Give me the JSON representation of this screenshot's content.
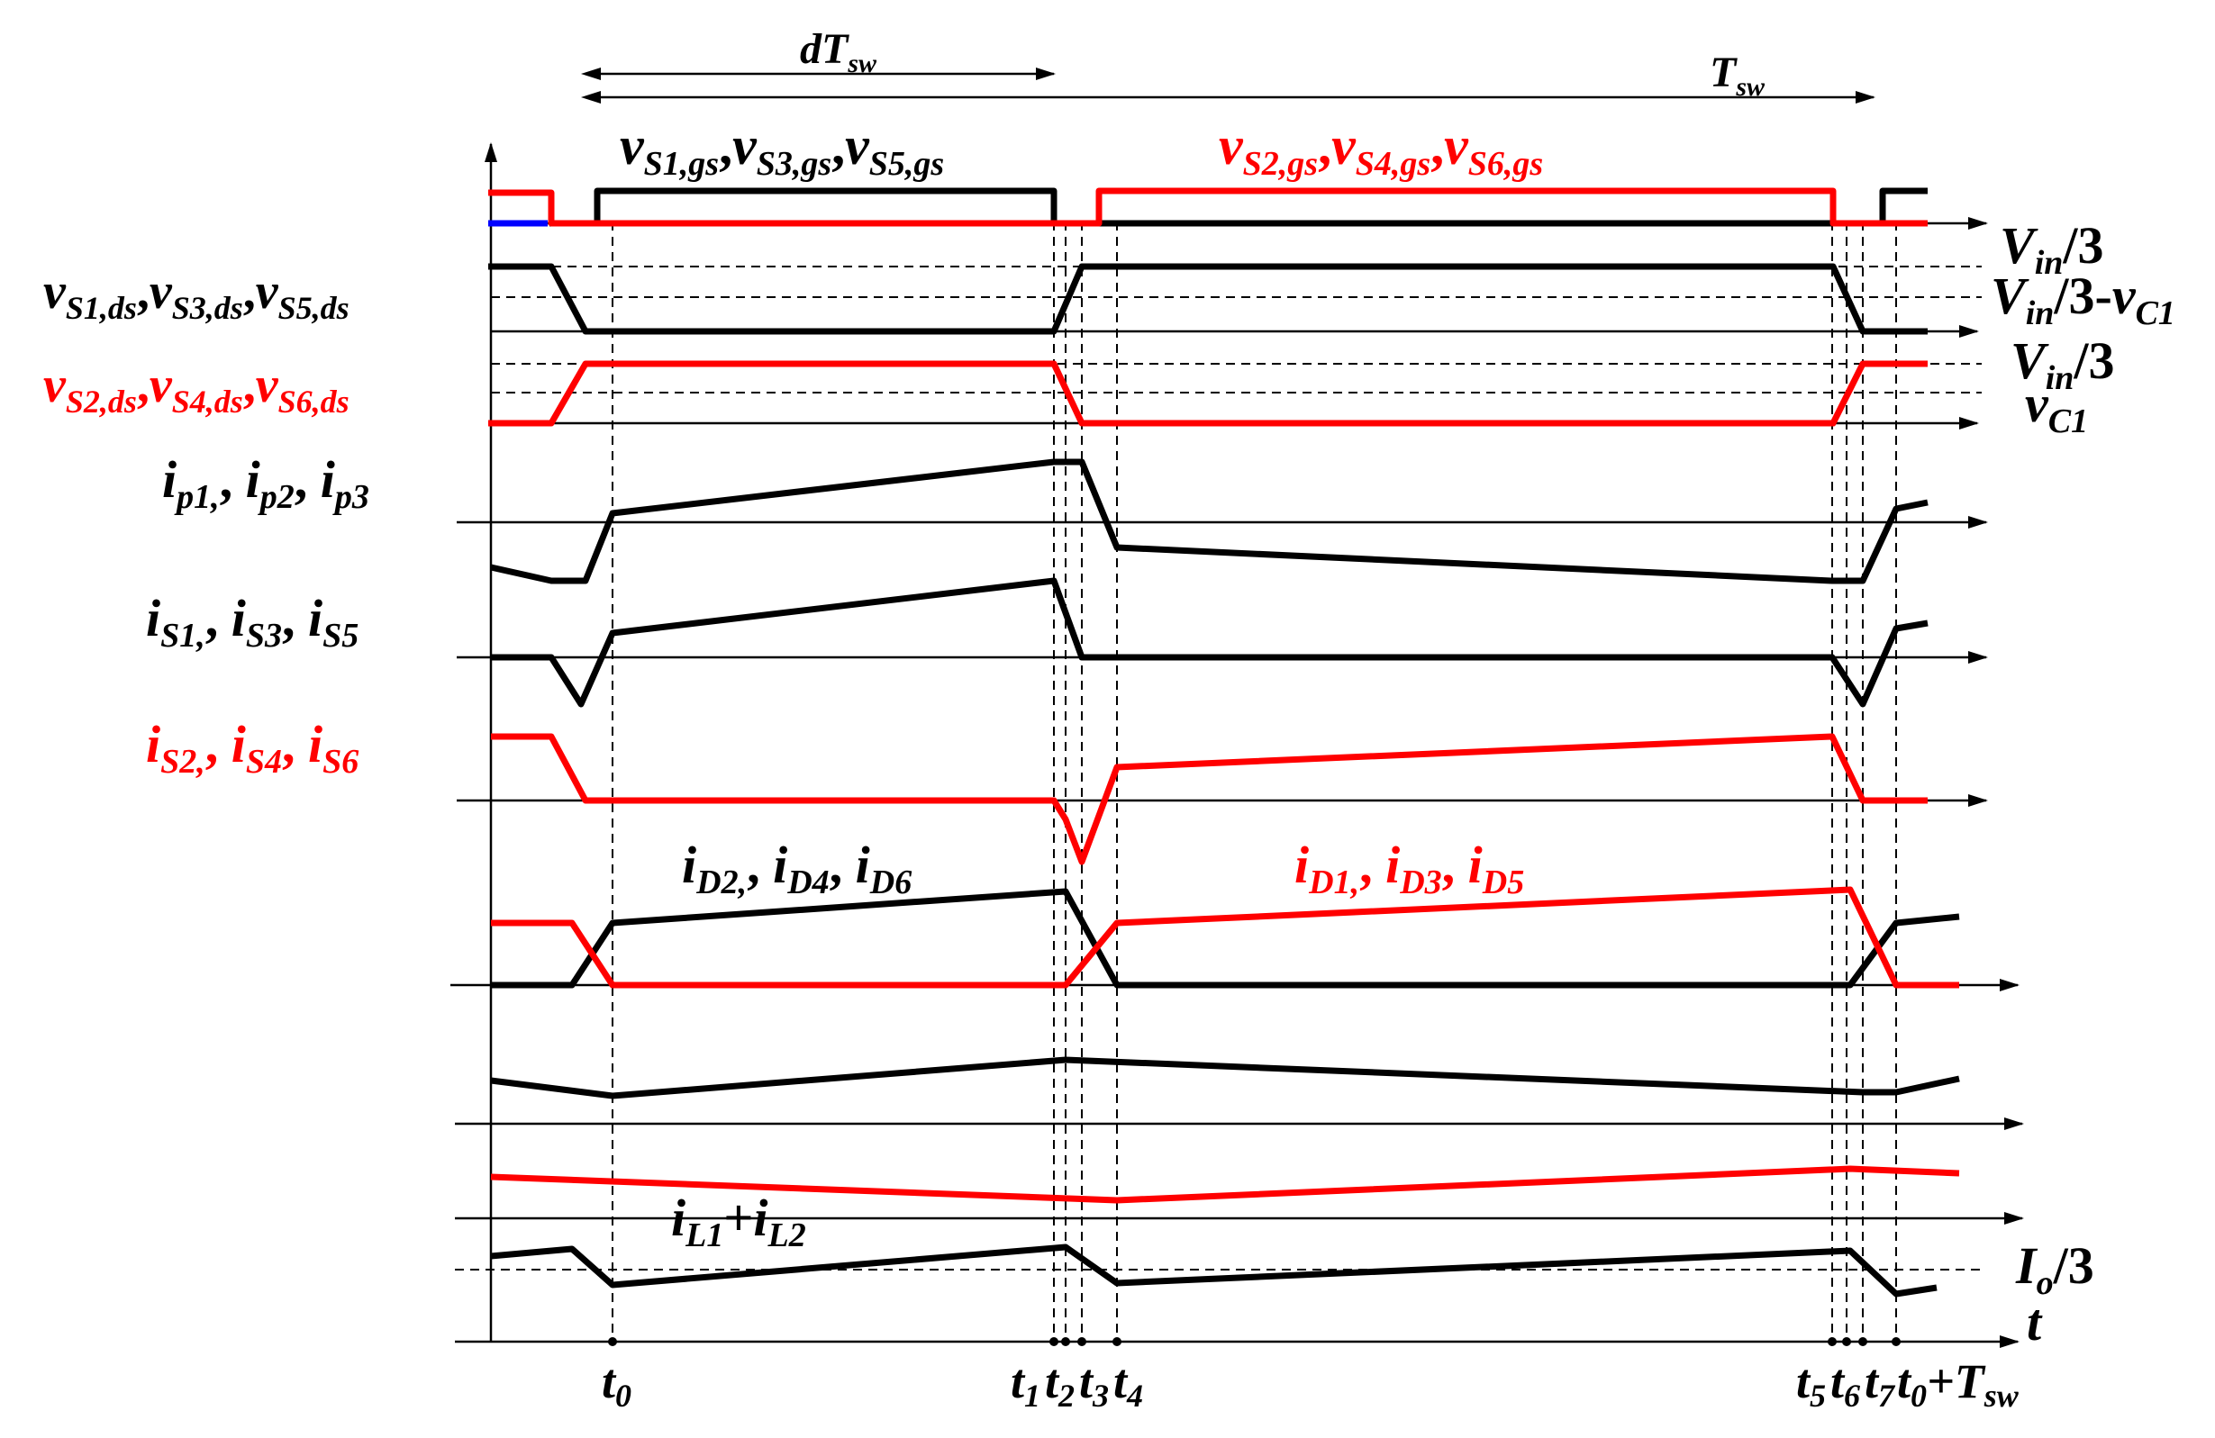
{
  "colors": {
    "black": "#000000",
    "red": "#ff0000",
    "blue": "#0000ff"
  },
  "period": {
    "dT_main": "dT",
    "dT_sub": "sw",
    "T_main": "T",
    "T_sub": "sw"
  },
  "gate_labels": {
    "black": [
      {
        "v": "v",
        "s": "S1,gs",
        "sep": ","
      },
      {
        "v": "v",
        "s": "S3,gs",
        "sep": ","
      },
      {
        "v": "v",
        "s": "S5,gs",
        "sep": ""
      }
    ],
    "red": [
      {
        "v": "v",
        "s": "S2,gs",
        "sep": ","
      },
      {
        "v": "v",
        "s": "S4,gs",
        "sep": ","
      },
      {
        "v": "v",
        "s": "S6,gs",
        "sep": ""
      }
    ]
  },
  "left_labels": {
    "vds_odd": [
      {
        "v": "v",
        "s": "S1,ds",
        "sep": ","
      },
      {
        "v": "v",
        "s": "S3,ds",
        "sep": ","
      },
      {
        "v": "v",
        "s": "S5,ds",
        "sep": ""
      }
    ],
    "vds_even": [
      {
        "v": "v",
        "s": "S2,ds",
        "sep": ","
      },
      {
        "v": "v",
        "s": "S4,ds",
        "sep": ","
      },
      {
        "v": "v",
        "s": "S6,ds",
        "sep": ""
      }
    ],
    "ip": [
      {
        "v": "i",
        "s": "p1,",
        "sep": ", "
      },
      {
        "v": "i",
        "s": "p2",
        "sep": ", "
      },
      {
        "v": "i",
        "s": "p3",
        "sep": ""
      }
    ],
    "is_odd": [
      {
        "v": "i",
        "s": "S1,",
        "sep": ", "
      },
      {
        "v": "i",
        "s": "S3",
        "sep": ", "
      },
      {
        "v": "i",
        "s": "S5",
        "sep": ""
      }
    ],
    "is_even": [
      {
        "v": "i",
        "s": "S2,",
        "sep": ", "
      },
      {
        "v": "i",
        "s": "S4",
        "sep": ", "
      },
      {
        "v": "i",
        "s": "S6",
        "sep": ""
      }
    ]
  },
  "diode_labels": {
    "black": [
      {
        "v": "i",
        "s": "D2,",
        "sep": ", "
      },
      {
        "v": "i",
        "s": "D4",
        "sep": ", "
      },
      {
        "v": "i",
        "s": "D6",
        "sep": ""
      }
    ],
    "red": [
      {
        "v": "i",
        "s": "D1,",
        "sep": ", "
      },
      {
        "v": "i",
        "s": "D3",
        "sep": ", "
      },
      {
        "v": "i",
        "s": "D5",
        "sep": ""
      }
    ]
  },
  "inductor_label": {
    "v1": "i",
    "s1": "L1",
    "plus": "+",
    "v2": "i",
    "s2": "L2"
  },
  "right_labels": {
    "vin3_a": {
      "main": "V",
      "sub": "in",
      "tail": "/3"
    },
    "vin3_c1": {
      "main": "V",
      "sub": "in",
      "tail": "/3-",
      "v": "v",
      "vsub": "C1"
    },
    "vin3_b": {
      "main": "V",
      "sub": "in",
      "tail": "/3"
    },
    "vc1": {
      "v": "v",
      "sub": "C1"
    },
    "io3": {
      "main": "I",
      "sub": "o",
      "tail": "/3"
    },
    "t_axis": "t"
  },
  "time_labels": {
    "t0": {
      "m": "t",
      "s": "0"
    },
    "t1": {
      "m": "t",
      "s": "1"
    },
    "t2": {
      "m": "t",
      "s": "2"
    },
    "t3": {
      "m": "t",
      "s": "3"
    },
    "t4": {
      "m": "t",
      "s": "4"
    },
    "t5": {
      "m": "t",
      "s": "5"
    },
    "t6": {
      "m": "t",
      "s": "6"
    },
    "t7": {
      "m": "t",
      "s": "7"
    },
    "t0Tsw": {
      "m": "t",
      "s": "0",
      "plus": "+T",
      "s2": "sw"
    }
  }
}
